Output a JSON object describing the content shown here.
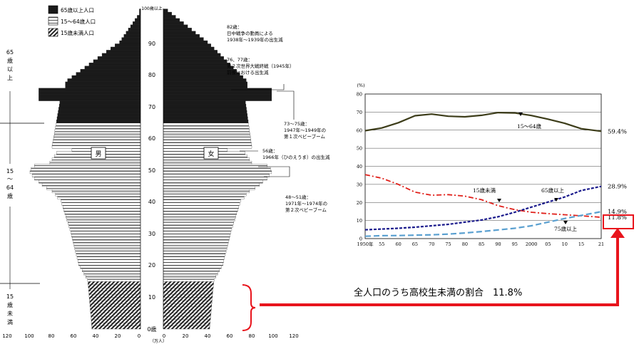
{
  "colors": {
    "elderly": "#1a1a1a",
    "working_stripes": "#555555",
    "children_hatch": "#222222",
    "line_15_64": "#3d3d1a",
    "line_under15": "#e0201a",
    "line_65plus": "#1a1a8c",
    "line_75plus": "#5aa0d0",
    "highlight": "#e8141c"
  },
  "pyramid": {
    "legend": [
      "65歳以上人口",
      "15～64歳人口",
      "15歳未満人口"
    ],
    "age_groups_left": {
      "elderly": [
        "65",
        "歳",
        "以",
        "上"
      ],
      "working": [
        "15",
        "～",
        "64",
        "歳"
      ],
      "children": [
        "15",
        "歳",
        "未",
        "満"
      ]
    },
    "male_label": "男",
    "female_label": "女",
    "age_top_label": "100歳以上",
    "age_ticks": [
      "90",
      "80",
      "70",
      "60",
      "50",
      "40",
      "30",
      "20",
      "10"
    ],
    "age_zero_label": "0歳",
    "x_ticks_left": [
      "120",
      "100",
      "80",
      "60",
      "40",
      "20",
      "0"
    ],
    "x_ticks_right": [
      "0",
      "20",
      "40",
      "60",
      "80",
      "100",
      "120"
    ],
    "x_unit": "（万人）",
    "annotations": {
      "a82": [
        "82歳：",
        "日中戦争の動員による",
        "1938年～1939年の出生減"
      ],
      "a76": [
        "76、77歳：",
        "第２次世界大戦終戦（1945年）",
        "前後における出生減"
      ],
      "a73": [
        "73～75歳：",
        "1947年～1949年の",
        "第１次ベビーブーム"
      ],
      "a56": [
        "56歳：",
        "1966年（ひのえうま）の出生減"
      ],
      "a48": [
        "48～51歳：",
        "1971年～1974年の",
        "第２次ベビーブーム"
      ]
    },
    "bracket_label": "全人口のうち高校生未満の割合　11.8%"
  },
  "chart_data": {
    "type": "line",
    "y_unit_label": "(%)",
    "ylim": [
      0,
      80
    ],
    "y_ticks": [
      "0",
      "10",
      "20",
      "30",
      "40",
      "50",
      "60",
      "70",
      "80"
    ],
    "x_tick_labels": [
      "1950年",
      "55",
      "60",
      "65",
      "70",
      "75",
      "80",
      "85",
      "90",
      "95",
      "2000",
      "05",
      "10",
      "15",
      "21"
    ],
    "x": [
      1950,
      1955,
      1960,
      1965,
      1970,
      1975,
      1980,
      1985,
      1990,
      1995,
      2000,
      2005,
      2010,
      2015,
      2021
    ],
    "grid": true,
    "series": [
      {
        "name": "15～64歳",
        "end_label": "59.4%",
        "values": [
          59.7,
          61.2,
          64.1,
          68.0,
          68.9,
          67.7,
          67.4,
          68.2,
          69.7,
          69.5,
          68.1,
          66.1,
          63.8,
          60.8,
          59.4
        ]
      },
      {
        "name": "15歳未満",
        "end_label": "11.8%",
        "values": [
          35.4,
          33.4,
          30.0,
          25.7,
          24.0,
          24.3,
          23.5,
          21.5,
          18.2,
          16.0,
          14.6,
          13.8,
          13.2,
          12.6,
          11.8
        ]
      },
      {
        "name": "65歳以上",
        "end_label": "28.9%",
        "values": [
          4.9,
          5.3,
          5.7,
          6.3,
          7.1,
          7.9,
          9.1,
          10.3,
          12.1,
          14.6,
          17.4,
          20.2,
          23.0,
          26.6,
          28.9
        ]
      },
      {
        "name": "75歳以上",
        "end_label": "14.9%",
        "values": [
          1.3,
          1.6,
          1.7,
          1.9,
          2.1,
          2.5,
          3.1,
          3.9,
          4.8,
          5.7,
          7.1,
          9.1,
          11.1,
          12.8,
          14.9
        ]
      }
    ]
  }
}
